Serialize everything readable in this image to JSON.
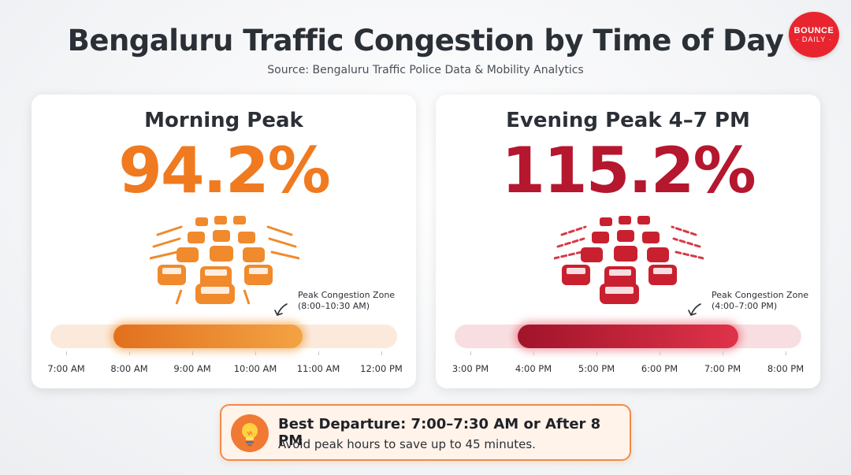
{
  "header": {
    "title": "Bengaluru Traffic Congestion by Time of Day",
    "source": "Source: Bengaluru Traffic Police Data & Mobility Analytics"
  },
  "logo": {
    "line1": "BOUNCE",
    "line2": "· DAILY ·",
    "color": "#e8252e"
  },
  "morning": {
    "title": "Morning Peak",
    "value": "94.2%",
    "accent": "#f07a1f",
    "zone_label": "Peak Congestion Zone",
    "zone_range": "(8:00–10:30 AM)",
    "zone_start_hour": 8.0,
    "zone_end_hour": 10.5,
    "axis_start_hour": 7,
    "axis_end_hour": 12,
    "ticks": [
      "7:00 AM",
      "8:00 AM",
      "9:00 AM",
      "10:00 AM",
      "11:00 AM",
      "12:00 PM"
    ],
    "icon": "traffic-jam-icon"
  },
  "evening": {
    "title": "Evening Peak 4–7 PM",
    "value": "115.2%",
    "accent": "#b5172e",
    "zone_label": "Peak Congestion Zone",
    "zone_range": "(4:00–7:00 PM)",
    "zone_start_hour": 16.0,
    "zone_end_hour": 19.0,
    "axis_start_hour": 15,
    "axis_end_hour": 20,
    "ticks": [
      "3:00 PM",
      "4:00 PM",
      "5:00 PM",
      "6:00 PM",
      "7:00 PM",
      "8:00 PM"
    ],
    "icon": "traffic-jam-icon"
  },
  "tip": {
    "title": "Best Departure: 7:00–7:30 AM or After 8 PM",
    "subtitle": "Avoid peak hours to save up to 45 minutes.",
    "icon": "lightbulb-icon"
  }
}
